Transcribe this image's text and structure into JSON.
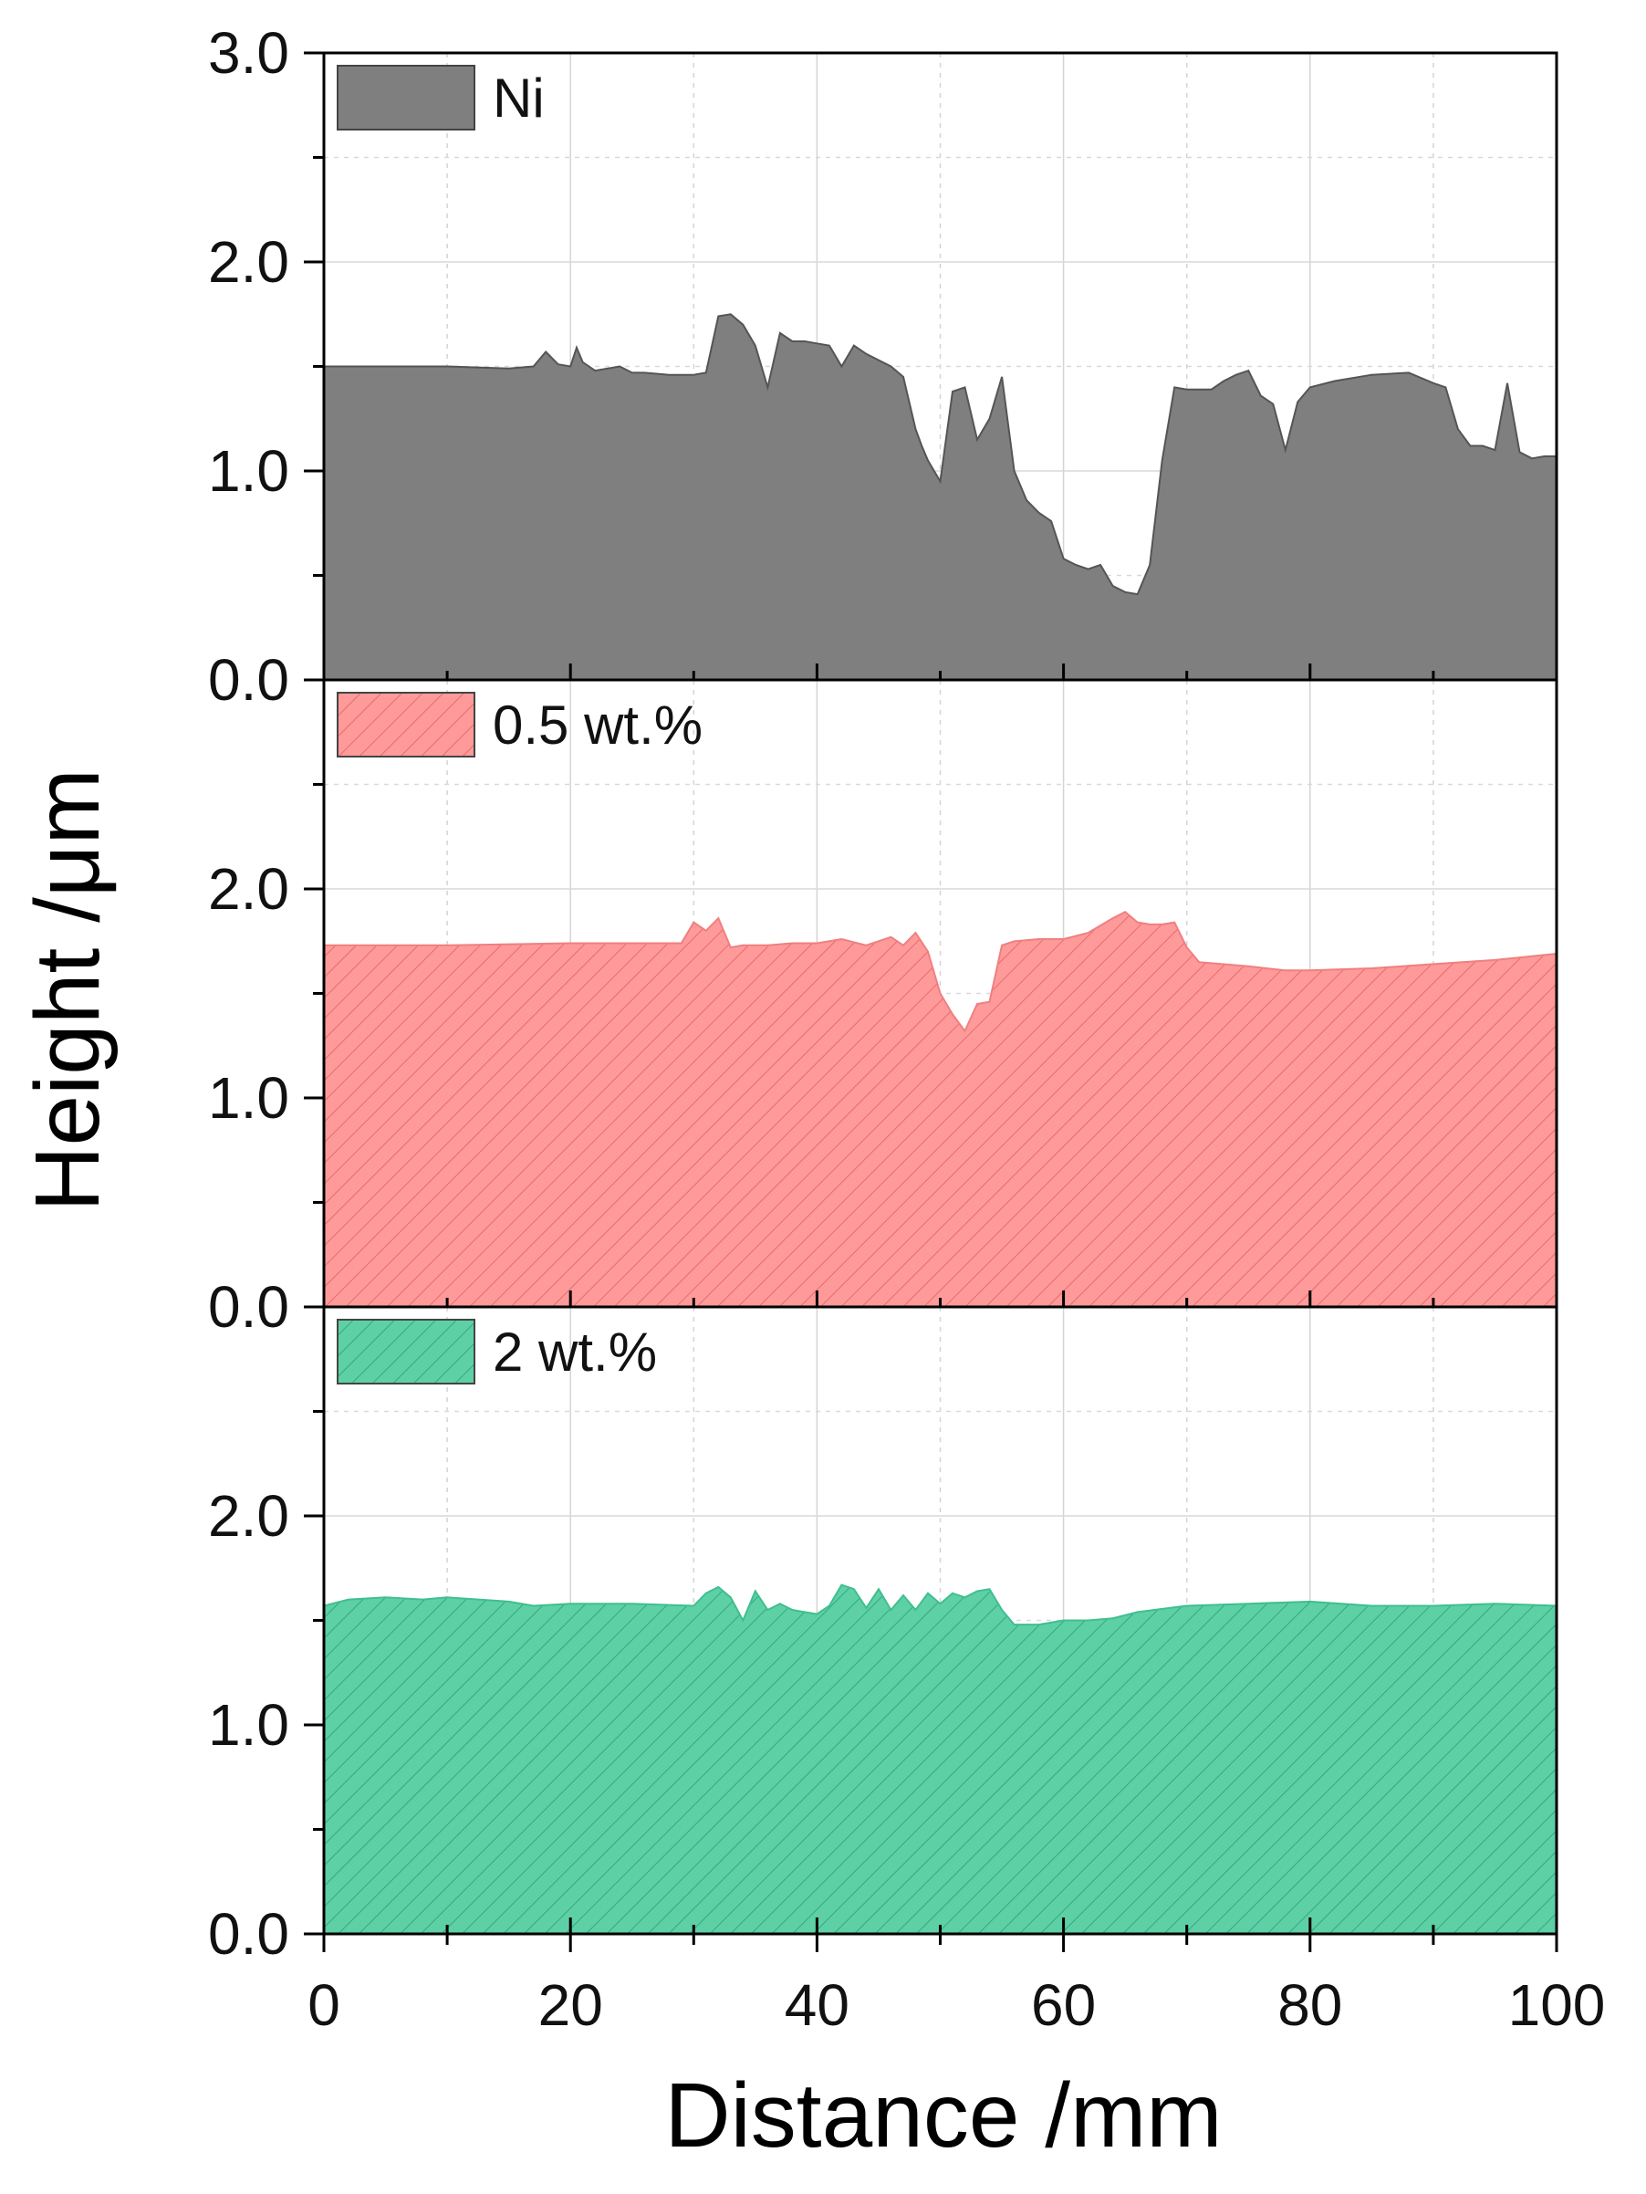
{
  "chart_data": {
    "type": "area",
    "xlabel": "Distance /mm",
    "ylabel": "Height /μm",
    "xlim": [
      0,
      100
    ],
    "xticks": [
      0,
      20,
      40,
      60,
      80,
      100
    ],
    "xtick_labels": [
      "0",
      "20",
      "40",
      "60",
      "80",
      "100"
    ],
    "grid": true,
    "legend_position": "top-left",
    "panels": [
      {
        "name": "Ni",
        "color": "#7f7f7f",
        "fill_pattern": "solid",
        "ylim": [
          0,
          3
        ],
        "yticks": [
          0,
          1,
          2,
          3
        ],
        "ytick_labels": [
          "0.0",
          "1.0",
          "2.0",
          "3.0"
        ],
        "x": [
          0,
          5,
          10,
          15,
          17,
          18,
          19,
          20,
          20.5,
          21,
          22,
          24,
          25,
          26,
          28,
          30,
          31,
          32,
          33,
          34,
          35,
          36,
          37,
          38,
          39,
          40,
          41,
          42,
          43,
          44,
          46,
          47,
          48,
          48.5,
          49,
          50,
          51,
          52,
          53,
          54,
          55,
          56,
          57,
          58,
          59,
          60,
          61,
          62,
          63,
          64,
          65,
          66,
          67,
          68,
          69,
          70,
          71,
          72,
          73,
          74,
          75,
          76,
          77,
          78,
          79,
          80,
          82,
          85,
          88,
          90,
          91,
          92,
          93,
          94,
          95,
          96,
          97,
          98,
          99,
          100
        ],
        "y": [
          1.5,
          1.5,
          1.5,
          1.49,
          1.5,
          1.57,
          1.51,
          1.5,
          1.59,
          1.52,
          1.48,
          1.5,
          1.47,
          1.47,
          1.46,
          1.46,
          1.47,
          1.74,
          1.75,
          1.7,
          1.6,
          1.4,
          1.66,
          1.62,
          1.62,
          1.61,
          1.6,
          1.5,
          1.6,
          1.56,
          1.5,
          1.45,
          1.2,
          1.12,
          1.05,
          0.95,
          1.38,
          1.4,
          1.15,
          1.25,
          1.45,
          1.0,
          0.86,
          0.8,
          0.76,
          0.58,
          0.55,
          0.53,
          0.55,
          0.45,
          0.42,
          0.41,
          0.55,
          1.05,
          1.4,
          1.39,
          1.39,
          1.39,
          1.43,
          1.46,
          1.48,
          1.36,
          1.32,
          1.1,
          1.33,
          1.4,
          1.43,
          1.46,
          1.47,
          1.42,
          1.4,
          1.2,
          1.12,
          1.12,
          1.1,
          1.42,
          1.09,
          1.06,
          1.07,
          1.07
        ]
      },
      {
        "name": "0.5 wt.%",
        "color": "#ff9a9a",
        "fill_pattern": "hatch",
        "ylim": [
          0,
          3
        ],
        "yticks": [
          0,
          1,
          2
        ],
        "ytick_labels": [
          "0.0",
          "1.0",
          "2.0"
        ],
        "x": [
          0,
          10,
          20,
          29,
          30,
          31,
          32,
          33,
          34,
          36,
          38,
          40,
          42,
          44,
          46,
          47,
          48,
          49,
          50,
          51,
          52,
          53,
          54,
          55,
          56,
          58,
          60,
          62,
          64,
          65,
          66,
          67,
          68,
          69,
          70,
          71,
          75,
          78,
          80,
          85,
          90,
          95,
          100
        ],
        "y": [
          1.73,
          1.73,
          1.74,
          1.74,
          1.84,
          1.8,
          1.86,
          1.72,
          1.73,
          1.73,
          1.74,
          1.74,
          1.76,
          1.73,
          1.77,
          1.73,
          1.79,
          1.7,
          1.5,
          1.4,
          1.32,
          1.45,
          1.46,
          1.73,
          1.75,
          1.76,
          1.76,
          1.79,
          1.86,
          1.89,
          1.84,
          1.83,
          1.83,
          1.84,
          1.72,
          1.65,
          1.63,
          1.61,
          1.61,
          1.62,
          1.64,
          1.66,
          1.69
        ]
      },
      {
        "name": "2 wt.%",
        "color": "#5ed0a6",
        "fill_pattern": "hatch",
        "ylim": [
          0,
          3
        ],
        "yticks": [
          0,
          1,
          2
        ],
        "ytick_labels": [
          "0.0",
          "1.0",
          "2.0"
        ],
        "x": [
          0,
          2,
          5,
          8,
          10,
          15,
          17,
          20,
          25,
          30,
          31,
          32,
          33,
          34,
          35,
          36,
          37,
          38,
          39,
          40,
          41,
          42,
          43,
          44,
          45,
          46,
          47,
          48,
          49,
          50,
          51,
          52,
          53,
          54,
          55,
          56,
          58,
          60,
          62,
          64,
          66,
          70,
          75,
          80,
          85,
          90,
          95,
          100
        ],
        "y": [
          1.57,
          1.6,
          1.61,
          1.6,
          1.61,
          1.59,
          1.57,
          1.58,
          1.58,
          1.57,
          1.63,
          1.66,
          1.61,
          1.5,
          1.64,
          1.55,
          1.58,
          1.55,
          1.54,
          1.53,
          1.57,
          1.67,
          1.65,
          1.56,
          1.65,
          1.55,
          1.62,
          1.55,
          1.63,
          1.58,
          1.63,
          1.61,
          1.64,
          1.65,
          1.55,
          1.48,
          1.48,
          1.5,
          1.5,
          1.51,
          1.54,
          1.57,
          1.58,
          1.59,
          1.57,
          1.57,
          1.58,
          1.57
        ]
      }
    ]
  }
}
